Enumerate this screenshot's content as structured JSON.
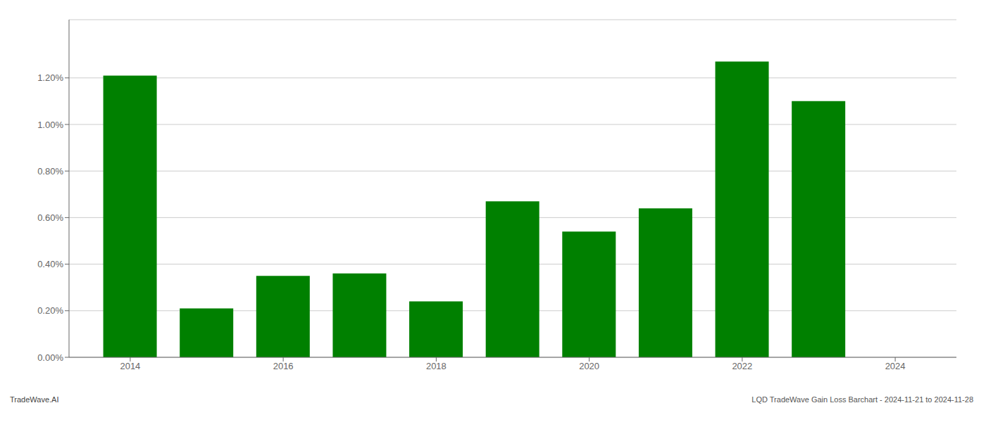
{
  "chart_data": {
    "type": "bar",
    "x": [
      2014,
      2015,
      2016,
      2017,
      2018,
      2019,
      2020,
      2021,
      2022,
      2023
    ],
    "values": [
      0.0121,
      0.0021,
      0.0035,
      0.0036,
      0.0024,
      0.0067,
      0.0054,
      0.0064,
      0.0127,
      0.011
    ],
    "color": "#008000",
    "xlim": [
      2013.2,
      2024.8
    ],
    "xticks": [
      2014,
      2016,
      2018,
      2020,
      2022,
      2024
    ],
    "ylim": [
      0,
      0.0145
    ],
    "yticks": [
      {
        "value": 0.0,
        "label": "0.00%"
      },
      {
        "value": 0.002,
        "label": "0.20%"
      },
      {
        "value": 0.004,
        "label": "0.40%"
      },
      {
        "value": 0.006,
        "label": "0.60%"
      },
      {
        "value": 0.008,
        "label": "0.80%"
      },
      {
        "value": 0.01,
        "label": "1.00%"
      },
      {
        "value": 0.012,
        "label": "1.20%"
      }
    ],
    "grid": true,
    "annotations": [
      "TradeWave.AI",
      "LQD TradeWave Gain Loss Barchart - 2024-11-21 to 2024-11-28"
    ]
  }
}
